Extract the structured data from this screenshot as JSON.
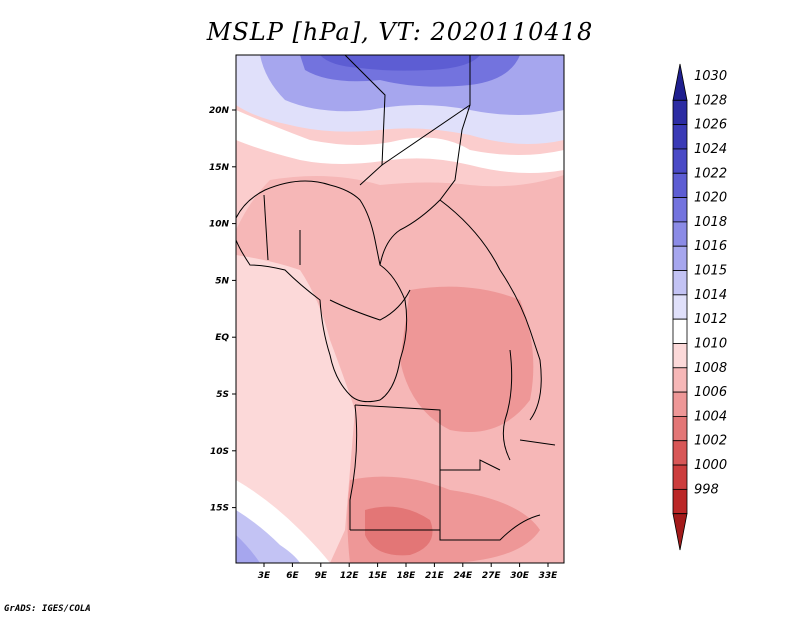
{
  "title": "MSLP [hPa], VT: 2020110418",
  "credit": "GrADS: IGES/COLA",
  "map": {
    "lat_labels": [
      "20N",
      "15N",
      "10N",
      "5N",
      "EQ",
      "5S",
      "10S",
      "15S"
    ],
    "lon_labels": [
      "3E",
      "6E",
      "9E",
      "12E",
      "15E",
      "18E",
      "21E",
      "24E",
      "27E",
      "30E",
      "33E"
    ]
  },
  "colorbar": {
    "labels": [
      "1030",
      "1028",
      "1026",
      "1024",
      "1022",
      "1020",
      "1018",
      "1016",
      "1015",
      "1014",
      "1012",
      "1010",
      "1008",
      "1006",
      "1004",
      "1002",
      "1000",
      "998"
    ],
    "colors": [
      "#1f1f8f",
      "#2c2ca3",
      "#3a3ab6",
      "#4a4ac6",
      "#5d5dd3",
      "#7373de",
      "#8b8be6",
      "#a6a6ee",
      "#c3c3f4",
      "#e0e0fa",
      "#ffffff",
      "#fcd9d9",
      "#f6b7b7",
      "#ee9797",
      "#e37676",
      "#d85757",
      "#cc3d3d",
      "#bb2727",
      "#a31a1a"
    ]
  }
}
